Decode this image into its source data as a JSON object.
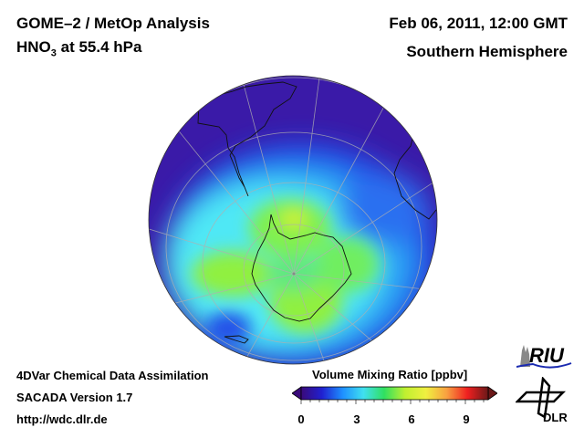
{
  "header": {
    "title": "GOME–2 / MetOp Analysis",
    "species": "HNO",
    "species_sub": "3",
    "level": " at 55.4 hPa",
    "date": "Feb 06, 2011, 12:00 GMT",
    "hemisphere": "Southern Hemisphere"
  },
  "footer": {
    "line1": "4DVar Chemical Data Assimilation",
    "line2": "SACADA Version 1.7",
    "line3": "http://wdc.dlr.de"
  },
  "colorbar": {
    "title": "Volume Mixing Ratio [ppbv]",
    "ticks": [
      "0",
      "3",
      "6",
      "9"
    ],
    "range": [
      0,
      10
    ],
    "colors": [
      "#3a0a7a",
      "#2020d0",
      "#1e90ff",
      "#40e0f0",
      "#30e060",
      "#c0f030",
      "#f0f040",
      "#f8a040",
      "#f02020",
      "#6a1818"
    ]
  },
  "logos": {
    "riu": "RIU",
    "dlr": "DLR"
  }
}
